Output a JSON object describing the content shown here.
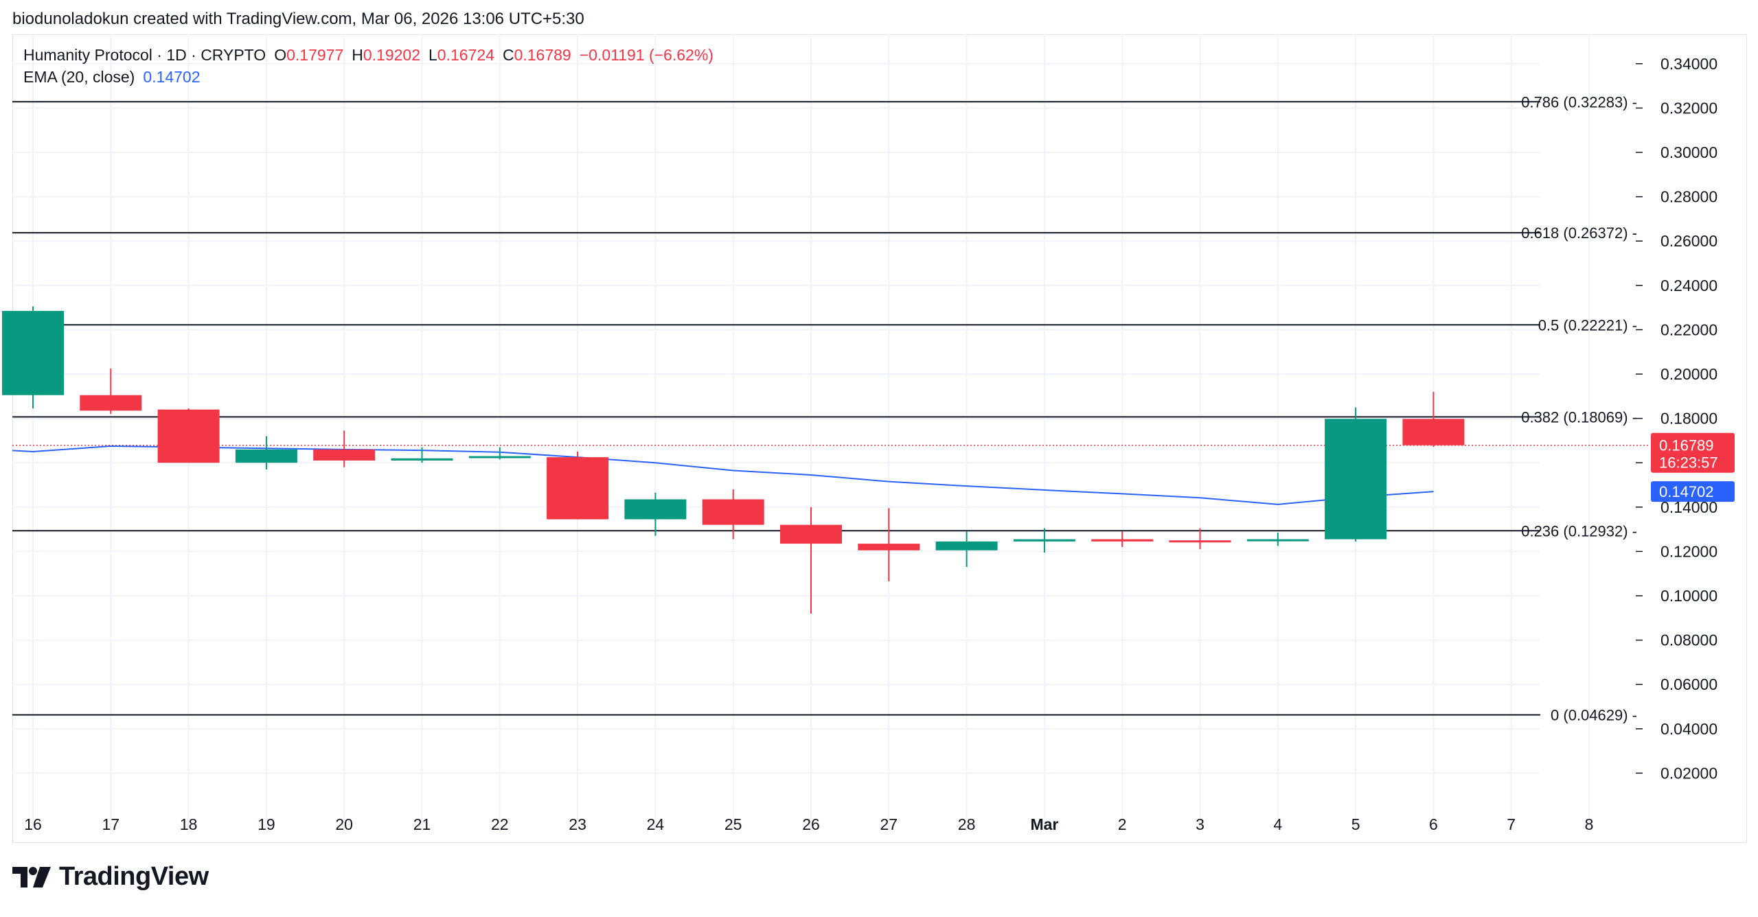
{
  "credit": "biodunoladokun created with TradingView.com, Mar 06, 2026 13:06 UTC+5:30",
  "legend": {
    "symbol": "Humanity Protocol · 1D · CRYPTO",
    "o_label": "O",
    "o_value": "0.17977",
    "h_label": "H",
    "h_value": "0.19202",
    "l_label": "L",
    "l_value": "0.16724",
    "c_label": "C",
    "c_value": "0.16789",
    "change": "−0.01191 (−6.62%)",
    "ema_label": "EMA (20, close)",
    "ema_value": "0.14702"
  },
  "branding": {
    "logo_text": "TradingView",
    "logo_icon": "tradingview-logo-icon"
  },
  "colors": {
    "up": "#089981",
    "down": "#f23645",
    "ema": "#2962ff",
    "fib": "#131722",
    "grid": "#f0f3fa"
  },
  "chart_data": {
    "type": "candlestick",
    "ylim": [
      0,
      0.35
    ],
    "y_ticks": [
      "0.02000",
      "0.04000",
      "0.06000",
      "0.08000",
      "0.10000",
      "0.12000",
      "0.14000",
      "0.16000",
      "0.18000",
      "0.20000",
      "0.22000",
      "0.24000",
      "0.26000",
      "0.28000",
      "0.30000",
      "0.32000",
      "0.34000"
    ],
    "x_ticks": [
      "16",
      "17",
      "18",
      "19",
      "20",
      "21",
      "22",
      "23",
      "24",
      "25",
      "26",
      "27",
      "28",
      "Mar",
      "2",
      "3",
      "4",
      "5",
      "6",
      "7",
      "8"
    ],
    "candles": [
      {
        "x": "16",
        "o": 0.1905,
        "h": 0.2305,
        "l": 0.1845,
        "c": 0.2285
      },
      {
        "x": "17",
        "o": 0.1905,
        "h": 0.2025,
        "l": 0.182,
        "c": 0.1835
      },
      {
        "x": "18",
        "o": 0.184,
        "h": 0.1845,
        "l": 0.16,
        "c": 0.16
      },
      {
        "x": "19",
        "o": 0.16,
        "h": 0.172,
        "l": 0.157,
        "c": 0.166
      },
      {
        "x": "20",
        "o": 0.166,
        "h": 0.1745,
        "l": 0.158,
        "c": 0.161
      },
      {
        "x": "21",
        "o": 0.161,
        "h": 0.167,
        "l": 0.16,
        "c": 0.162
      },
      {
        "x": "22",
        "o": 0.1625,
        "h": 0.167,
        "l": 0.1615,
        "c": 0.163
      },
      {
        "x": "23",
        "o": 0.1625,
        "h": 0.165,
        "l": 0.1345,
        "c": 0.1345
      },
      {
        "x": "24",
        "o": 0.1345,
        "h": 0.1465,
        "l": 0.127,
        "c": 0.1435
      },
      {
        "x": "25",
        "o": 0.1435,
        "h": 0.148,
        "l": 0.1255,
        "c": 0.132
      },
      {
        "x": "26",
        "o": 0.132,
        "h": 0.14,
        "l": 0.092,
        "c": 0.1235
      },
      {
        "x": "27",
        "o": 0.1235,
        "h": 0.1395,
        "l": 0.1065,
        "c": 0.1205
      },
      {
        "x": "28",
        "o": 0.1205,
        "h": 0.129,
        "l": 0.113,
        "c": 0.1245
      },
      {
        "x": "Mar",
        "o": 0.1245,
        "h": 0.1305,
        "l": 0.1195,
        "c": 0.1255
      },
      {
        "x": "2",
        "o": 0.1255,
        "h": 0.129,
        "l": 0.122,
        "c": 0.1245
      },
      {
        "x": "3",
        "o": 0.125,
        "h": 0.1305,
        "l": 0.121,
        "c": 0.1245
      },
      {
        "x": "4",
        "o": 0.125,
        "h": 0.1285,
        "l": 0.1225,
        "c": 0.1255
      },
      {
        "x": "5",
        "o": 0.1255,
        "h": 0.185,
        "l": 0.1245,
        "c": 0.1798
      },
      {
        "x": "6",
        "o": 0.17977,
        "h": 0.19202,
        "l": 0.16724,
        "c": 0.16789
      }
    ],
    "ema": {
      "name": "EMA (20, close)",
      "points": [
        {
          "x": "16",
          "y": 0.165
        },
        {
          "x": "17",
          "y": 0.1675
        },
        {
          "x": "18",
          "y": 0.167
        },
        {
          "x": "19",
          "y": 0.1665
        },
        {
          "x": "20",
          "y": 0.166
        },
        {
          "x": "21",
          "y": 0.1656
        },
        {
          "x": "22",
          "y": 0.1648
        },
        {
          "x": "23",
          "y": 0.1625
        },
        {
          "x": "24",
          "y": 0.16
        },
        {
          "x": "25",
          "y": 0.1565
        },
        {
          "x": "26",
          "y": 0.1545
        },
        {
          "x": "27",
          "y": 0.1515
        },
        {
          "x": "28",
          "y": 0.1495
        },
        {
          "x": "Mar",
          "y": 0.1477
        },
        {
          "x": "2",
          "y": 0.146
        },
        {
          "x": "3",
          "y": 0.1442
        },
        {
          "x": "4",
          "y": 0.1412
        },
        {
          "x": "5",
          "y": 0.1445
        },
        {
          "x": "6",
          "y": 0.14702
        }
      ]
    },
    "fib_levels": [
      {
        "label": "0.786 (0.32283)",
        "y": 0.32283
      },
      {
        "label": "0.618 (0.26372)",
        "y": 0.26372
      },
      {
        "label": "0.5 (0.22221)",
        "y": 0.22221
      },
      {
        "label": "0.382 (0.18069)",
        "y": 0.18069
      },
      {
        "label": "0.236 (0.12932)",
        "y": 0.12932
      },
      {
        "label": "0 (0.04629)",
        "y": 0.04629
      }
    ],
    "price_tag": {
      "value": "0.16789",
      "countdown": "16:23:57",
      "y": 0.16789
    },
    "ema_tag": {
      "value": "0.14702",
      "y": 0.14702
    }
  }
}
